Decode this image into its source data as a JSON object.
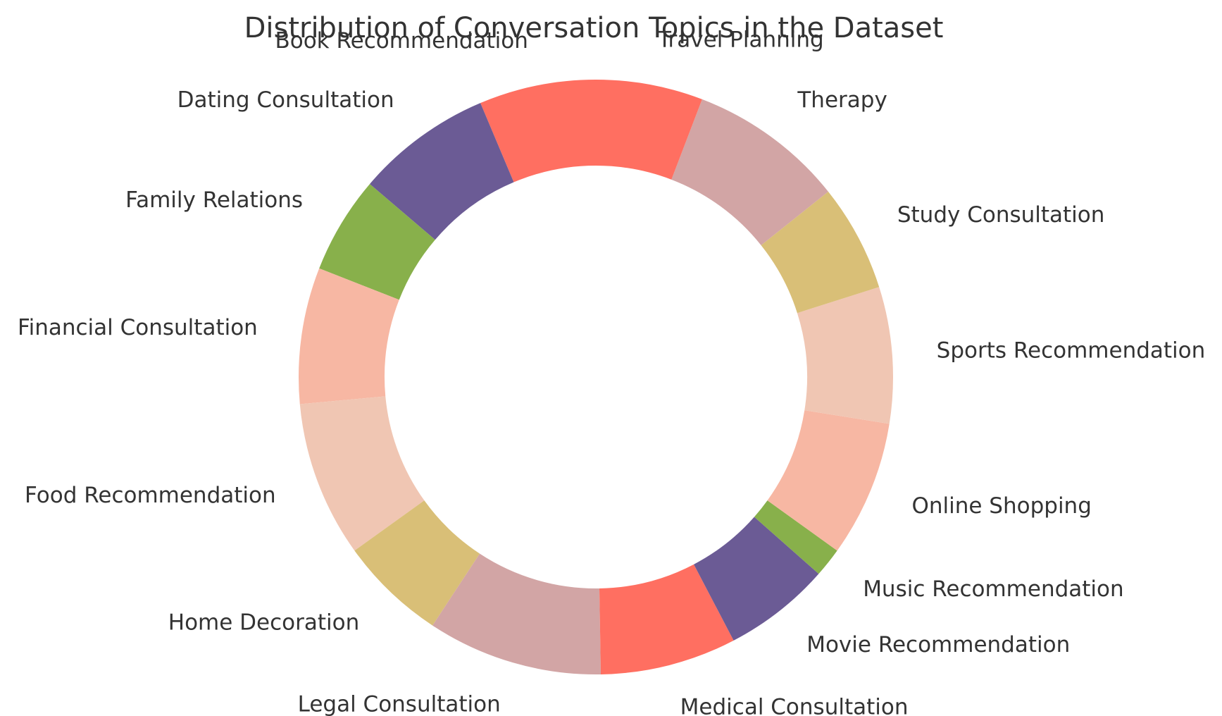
{
  "chart_data": {
    "type": "pie",
    "variant": "donut",
    "title": "Distribution of Conversation Topics in the Dataset",
    "start_angle_deg": 90,
    "direction": "counterclockwise",
    "slices": [
      {
        "label": "Book Recommendation",
        "value": 6.0,
        "color": "#FF6F61"
      },
      {
        "label": "Dating Consultation",
        "value": 7.0,
        "color": "#6B5B95"
      },
      {
        "label": "Family Relations",
        "value": 5.0,
        "color": "#88B04B"
      },
      {
        "label": "Financial Consultation",
        "value": 7.0,
        "color": "#F7B7A3"
      },
      {
        "label": "Food Recommendation",
        "value": 8.0,
        "color": "#F0C6B3"
      },
      {
        "label": "Home Decoration",
        "value": 5.5,
        "color": "#D9BF77"
      },
      {
        "label": "Legal Consultation",
        "value": 9.0,
        "color": "#D2A5A5"
      },
      {
        "label": "Medical Consultation",
        "value": 7.0,
        "color": "#FF6F61"
      },
      {
        "label": "Movie Recommendation",
        "value": 5.5,
        "color": "#6B5B95"
      },
      {
        "label": "Music Recommendation",
        "value": 1.5,
        "color": "#88B04B"
      },
      {
        "label": "Online Shopping",
        "value": 7.0,
        "color": "#F7B7A3"
      },
      {
        "label": "Sports Recommendation",
        "value": 7.0,
        "color": "#F0C6B3"
      },
      {
        "label": "Study Consultation",
        "value": 5.5,
        "color": "#D9BF77"
      },
      {
        "label": "Therapy",
        "value": 8.0,
        "color": "#D2A5A5"
      },
      {
        "label": "Travel Planning",
        "value": 5.5,
        "color": "#FF6F61"
      }
    ],
    "legend": "none",
    "label_color": "#333333"
  }
}
